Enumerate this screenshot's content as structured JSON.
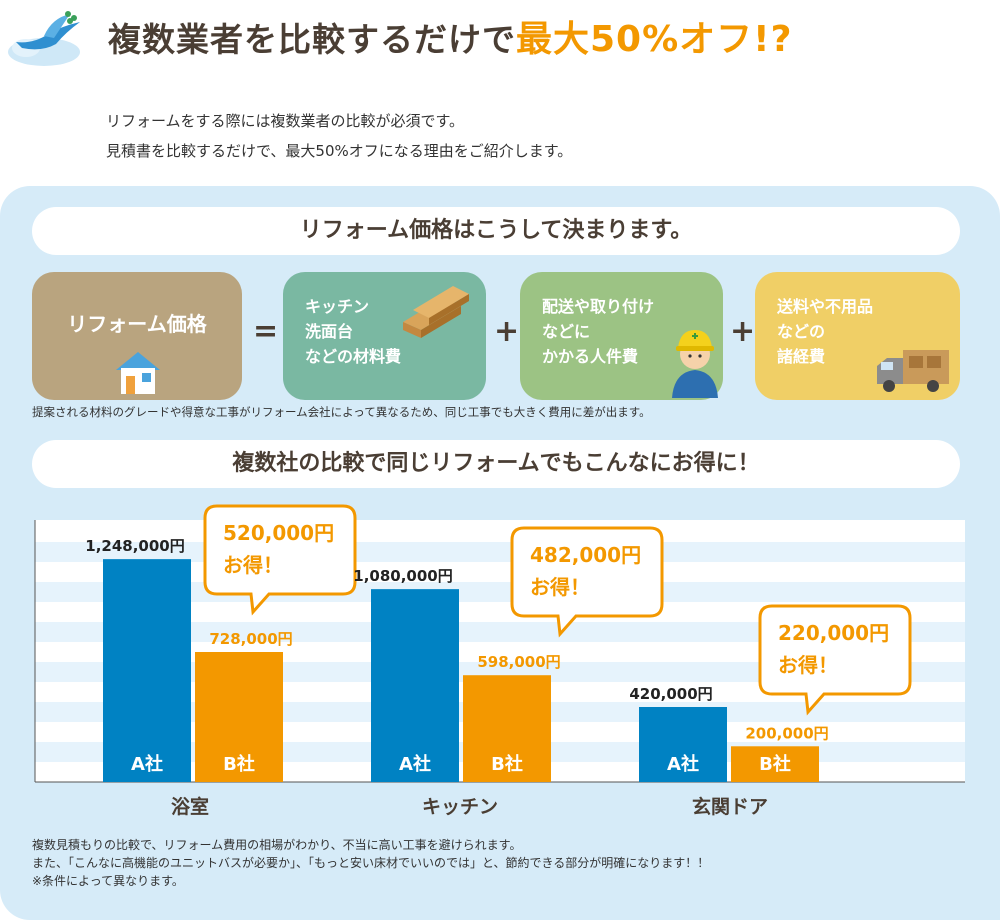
{
  "header": {
    "headline": "複数業者を比較するだけで",
    "highlight": "最大50%オフ!?"
  },
  "intro": [
    "リフォームをする際には複数業者の比較が必須です。",
    "見積書を比較するだけで、最大50%オフになる理由をご紹介します。"
  ],
  "price_section": {
    "title": "リフォーム価格はこうして決まります。",
    "box1": "リフォーム価格",
    "box2": [
      "キッチン",
      "洗面台",
      "などの材料費"
    ],
    "box3": [
      "配送や取り付け",
      "などに",
      "かかる人件費"
    ],
    "box4": [
      "送料や不用品",
      "などの",
      "諸経費"
    ],
    "op_equals": "=",
    "op_plus": "+",
    "note": "提案される材料のグレードや得意な工事がリフォーム会社によって異なるため、同じ工事でも大きく費用に差が出ます。"
  },
  "compare_section": {
    "title": "複数社の比較で同じリフォームでもこんなにお得に！"
  },
  "colors": {
    "company_a": "#0082c3",
    "company_b": "#f39800",
    "callout_border": "#f39800",
    "stripe": "#e6f3fc"
  },
  "chart_data": {
    "type": "bar",
    "categories": [
      "浴室",
      "キッチン",
      "玄関ドア"
    ],
    "series": [
      {
        "name": "A社",
        "values": [
          1248000,
          1080000,
          420000
        ],
        "labels": [
          "1,248,000円",
          "1,080,000円",
          "420,000円"
        ]
      },
      {
        "name": "B社",
        "values": [
          728000,
          598000,
          200000
        ],
        "labels": [
          "728,000円",
          "598,000円",
          "200,000円"
        ]
      }
    ],
    "savings": [
      {
        "amount": "520,000円",
        "text": "お得！"
      },
      {
        "amount": "482,000円",
        "text": "お得！"
      },
      {
        "amount": "220,000円",
        "text": "お得！"
      }
    ],
    "ylim": [
      0,
      1400000
    ]
  },
  "footnotes": [
    "複数見積もりの比較で、リフォーム費用の相場がわかり、不当に高い工事を避けられます。",
    "また、「こんなに高機能のユニットバスが必要か」、「もっと安い床材でいいのでは」と、節約できる部分が明確になります！！",
    "※条件によって異なります。"
  ]
}
